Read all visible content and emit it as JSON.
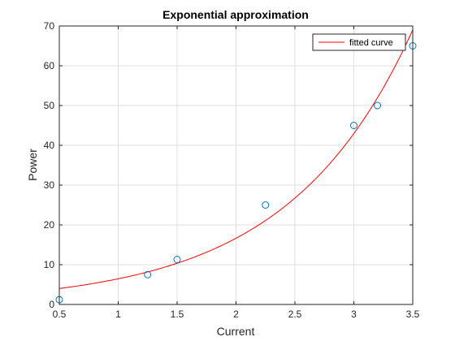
{
  "chart_data": {
    "type": "scatter",
    "title": "Exponential approximation",
    "xlabel": "Current",
    "ylabel": "Power",
    "xlim": [
      0.5,
      3.5
    ],
    "ylim": [
      0,
      70
    ],
    "xticks": [
      "0.5",
      "1",
      "1.5",
      "2",
      "2.5",
      "3",
      "3.5"
    ],
    "yticks": [
      "0",
      "10",
      "20",
      "30",
      "40",
      "50",
      "60",
      "70"
    ],
    "grid": true,
    "legend": {
      "placement": "top-right",
      "entries": [
        "fitted curve"
      ]
    },
    "series": [
      {
        "kind": "markers",
        "marker": "circle",
        "color": "#0072BD",
        "points": [
          {
            "x": 0.5,
            "y": 1.2
          },
          {
            "x": 1.25,
            "y": 7.5
          },
          {
            "x": 1.5,
            "y": 11.3
          },
          {
            "x": 2.25,
            "y": 25
          },
          {
            "x": 3.0,
            "y": 45
          },
          {
            "x": 3.2,
            "y": 50
          },
          {
            "x": 3.5,
            "y": 65
          }
        ]
      },
      {
        "name": "fitted curve",
        "kind": "line",
        "color": "#FF0000",
        "model": {
          "form": "a*exp(b*x)",
          "a": 2.5,
          "b": 0.948
        }
      }
    ]
  }
}
